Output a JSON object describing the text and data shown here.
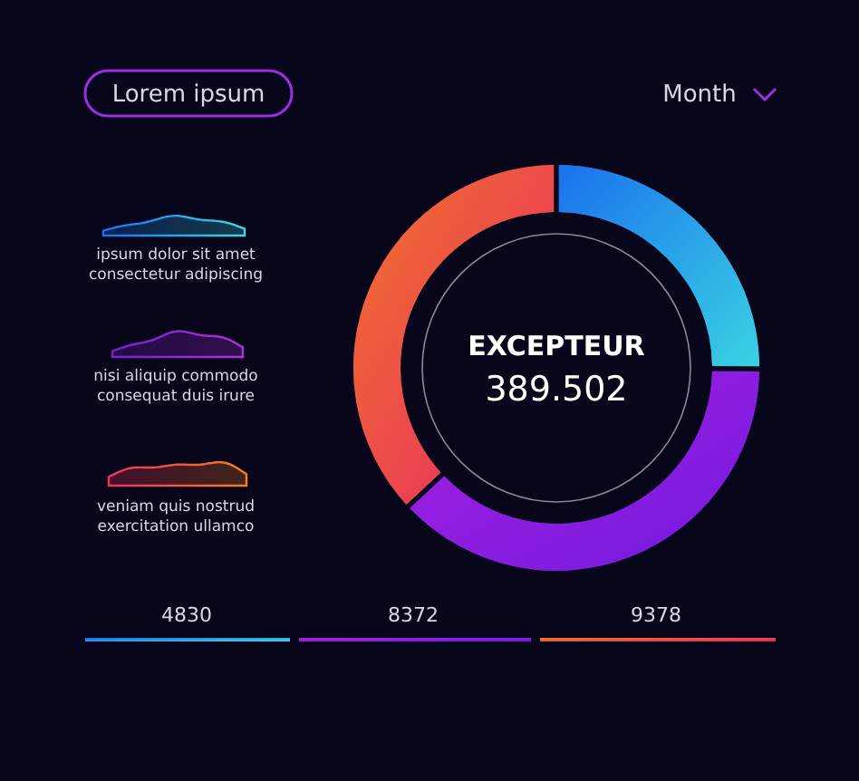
{
  "chart_data": {
    "type": "donut",
    "categories": [
      null,
      null,
      null
    ],
    "values": [
      25,
      38,
      37
    ],
    "colors": [
      "#2a9ae8",
      "#8a1fe0",
      "#f0405a"
    ],
    "annotations": [
      "Lorem ipsum",
      "Month",
      "ipsum dolor sit amet\nconsectetur adipiscing",
      "nisi aliquip commodo\nconsequat duis irure",
      "veniam quis nostrud\nexercitation ullamco",
      "EXCEPTEUR",
      "389.502",
      "4830",
      "8372",
      "9378"
    ]
  }
}
